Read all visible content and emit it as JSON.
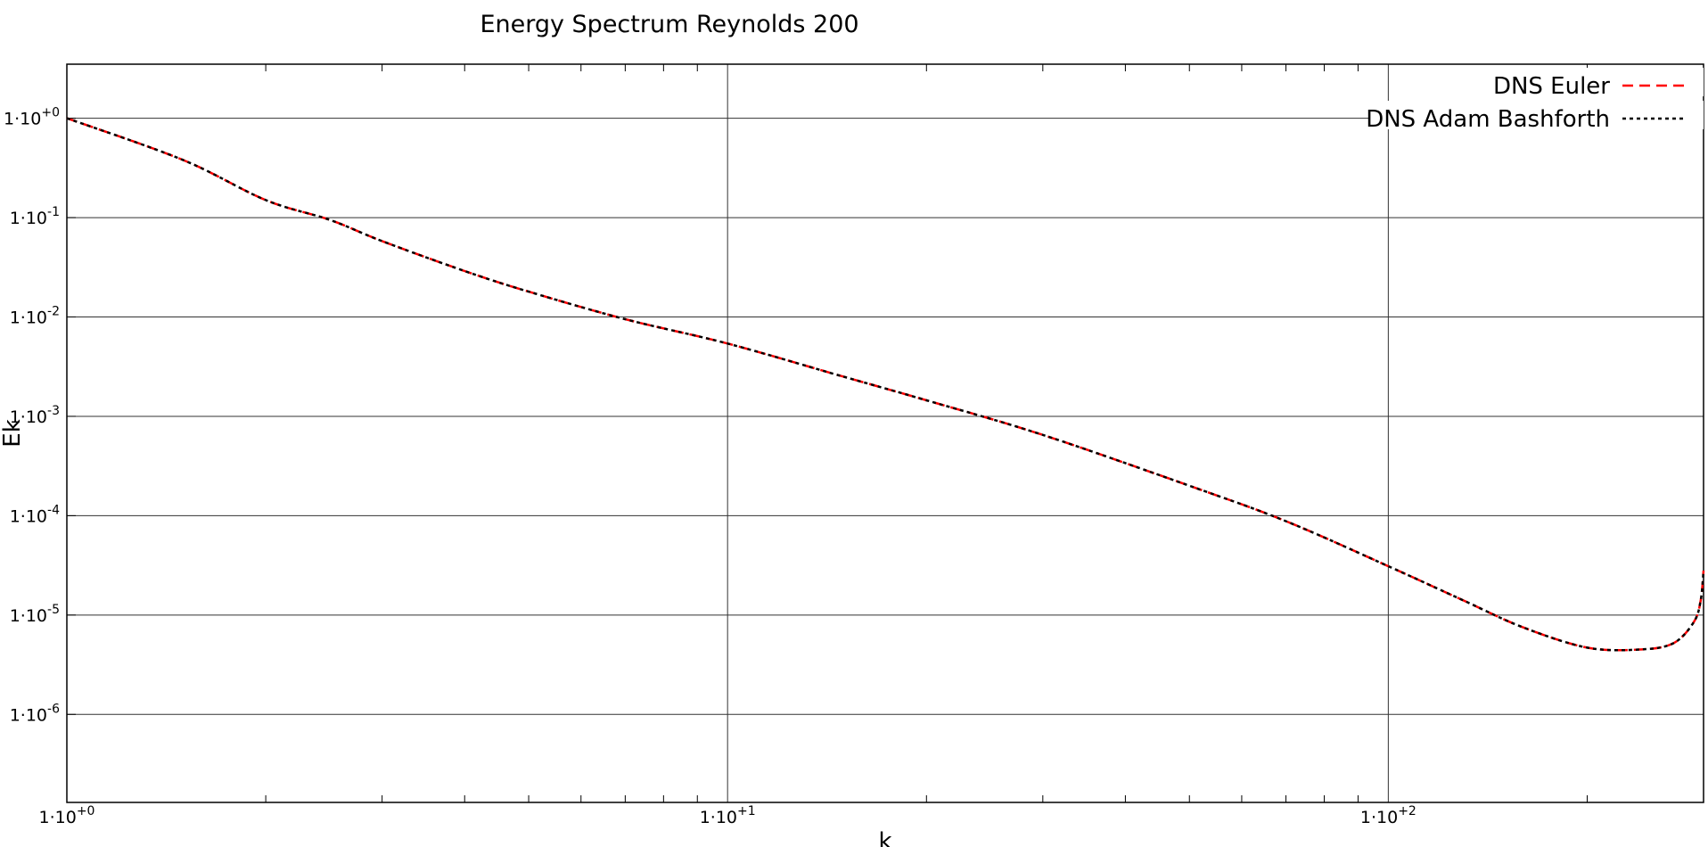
{
  "chart_data": {
    "type": "line",
    "title": "Energy Spectrum Reynolds 200",
    "xlabel": "k",
    "ylabel": "Ek",
    "xscale": "log",
    "yscale": "log",
    "xlim": [
      1,
      300
    ],
    "ylim": [
      1.3e-07,
      3.5
    ],
    "grid": true,
    "legend": "top-right",
    "x_ticks": [
      {
        "value": 1,
        "label": "1·10",
        "exp": "+0"
      },
      {
        "value": 10,
        "label": "1·10",
        "exp": "+1"
      },
      {
        "value": 100,
        "label": "1·10",
        "exp": "+2"
      }
    ],
    "y_ticks": [
      {
        "value": 1,
        "label": "1·10",
        "exp": "+0"
      },
      {
        "value": 0.1,
        "label": "1·10",
        "exp": "-1"
      },
      {
        "value": 0.01,
        "label": "1·10",
        "exp": "-2"
      },
      {
        "value": 0.001,
        "label": "1·10",
        "exp": "-3"
      },
      {
        "value": 0.0001,
        "label": "1·10",
        "exp": "-4"
      },
      {
        "value": 1e-05,
        "label": "1·10",
        "exp": "-5"
      },
      {
        "value": 1e-06,
        "label": "1·10",
        "exp": "-6"
      }
    ],
    "x": [
      1,
      1.5,
      2,
      2.5,
      3,
      4,
      5,
      7,
      10,
      15,
      20,
      30,
      50,
      70,
      100,
      130,
      160,
      200,
      240,
      270,
      290,
      297,
      300
    ],
    "series": [
      {
        "name": "DNS Euler",
        "color": "#ff0000",
        "dash": "dashed",
        "values": [
          1.0,
          0.38,
          0.15,
          0.095,
          0.058,
          0.029,
          0.018,
          0.0095,
          0.0054,
          0.0025,
          0.00145,
          0.00065,
          0.0002,
          8.8e-05,
          3.1e-05,
          1.4e-05,
          7.5e-06,
          4.7e-06,
          4.5e-06,
          5.2e-06,
          8.5e-06,
          1.4e-05,
          2.8e-05
        ]
      },
      {
        "name": "DNS Adam Bashforth",
        "color": "#000000",
        "dash": "dotted",
        "values": [
          1.0,
          0.38,
          0.15,
          0.095,
          0.058,
          0.029,
          0.018,
          0.0095,
          0.0054,
          0.0025,
          0.00145,
          0.00065,
          0.0002,
          8.8e-05,
          3.1e-05,
          1.4e-05,
          7.5e-06,
          4.7e-06,
          4.5e-06,
          5.2e-06,
          8.5e-06,
          1.4e-05,
          2.8e-05
        ]
      }
    ]
  }
}
